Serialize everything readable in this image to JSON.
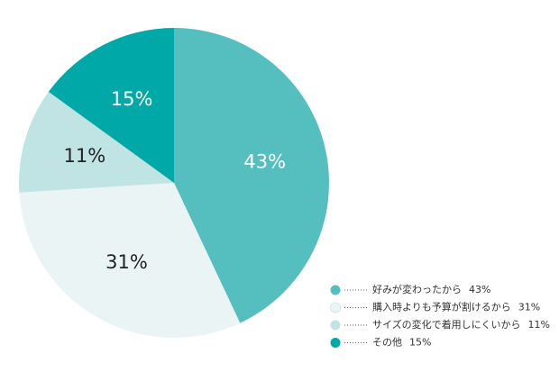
{
  "chart_data": {
    "type": "pie",
    "categories": [
      "好みが変わったから",
      "購入時よりも予算が割けるから",
      "サイズの変化で着用しにくいから",
      "その他"
    ],
    "values": [
      43,
      31,
      11,
      15
    ],
    "value_labels": [
      "43%",
      "31%",
      "11%",
      "15%"
    ],
    "colors": [
      "#55bfc0",
      "#eaf4f5",
      "#c0e4e4",
      "#00a9a8"
    ],
    "label_colors": [
      "#ffffff",
      "#222222",
      "#222222",
      "#ffffff"
    ]
  }
}
